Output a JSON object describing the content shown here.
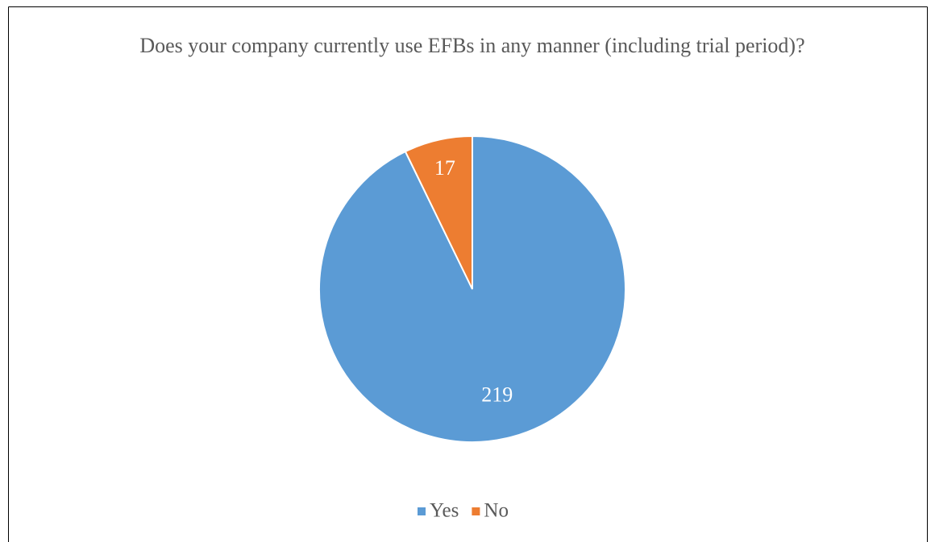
{
  "chart_data": {
    "type": "pie",
    "title": "Does your company currently use EFBs in any manner (including trial period)?",
    "categories": [
      "Yes",
      "No"
    ],
    "values": [
      219,
      17
    ],
    "colors": [
      "#5b9bd5",
      "#ed7d31"
    ],
    "legend": "bottom"
  }
}
